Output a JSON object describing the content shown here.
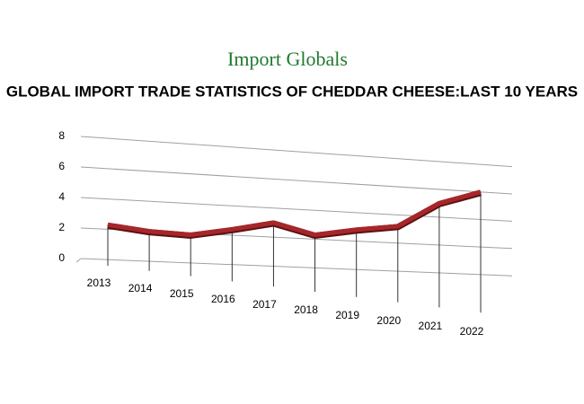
{
  "brand": "Import Globals",
  "chart_data": {
    "type": "line",
    "title": "GLOBAL IMPORT TRADE STATISTICS OF CHEDDAR CHEESE:LAST 10 YEARS",
    "categories": [
      "2013",
      "2014",
      "2015",
      "2016",
      "2017",
      "2018",
      "2019",
      "2020",
      "2021",
      "2022"
    ],
    "values": [
      2.3,
      2.0,
      1.9,
      2.4,
      3.0,
      2.3,
      2.8,
      3.2,
      5.0,
      6.0
    ],
    "color": "#a8262a",
    "ylim": [
      0,
      8
    ],
    "yticks": [
      0,
      2,
      4,
      6,
      8
    ],
    "grid": true
  }
}
